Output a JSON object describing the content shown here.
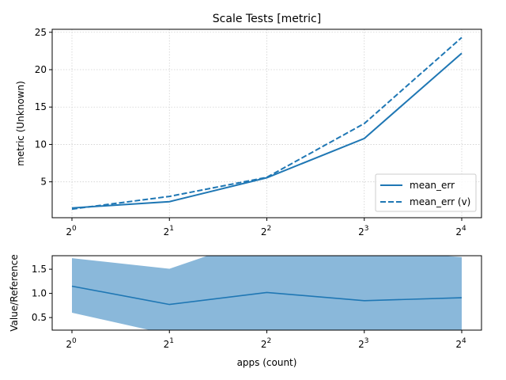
{
  "chart_data": [
    {
      "type": "line",
      "title": "Scale Tests [metric]",
      "xlabel": "",
      "ylabel": "metric (Unknown)",
      "x": [
        1,
        2,
        4,
        8,
        16
      ],
      "xscale": "log2",
      "xticks": [
        {
          "value": 1,
          "base": "2",
          "exp": "0"
        },
        {
          "value": 2,
          "base": "2",
          "exp": "1"
        },
        {
          "value": 4,
          "base": "2",
          "exp": "2"
        },
        {
          "value": 8,
          "base": "2",
          "exp": "3"
        },
        {
          "value": 16,
          "base": "2",
          "exp": "4"
        }
      ],
      "yticks": [
        5,
        10,
        15,
        20,
        25
      ],
      "ylim": [
        0.2,
        25.4
      ],
      "grid": true,
      "legend": "lower-right",
      "series": [
        {
          "name": "mean_err",
          "style": "solid",
          "color": "#1f77b4",
          "values": [
            1.5,
            2.35,
            5.55,
            10.8,
            22.2
          ]
        },
        {
          "name": "mean_err (v)",
          "style": "dashed",
          "color": "#1f77b4",
          "values": [
            1.35,
            3.05,
            5.6,
            12.8,
            24.3
          ]
        }
      ]
    },
    {
      "type": "area",
      "title": "",
      "xlabel": "apps (count)",
      "ylabel": "Value/Reference",
      "x": [
        1,
        2,
        4,
        8,
        16
      ],
      "xscale": "log2",
      "xticks": [
        {
          "value": 1,
          "base": "2",
          "exp": "0"
        },
        {
          "value": 2,
          "base": "2",
          "exp": "1"
        },
        {
          "value": 4,
          "base": "2",
          "exp": "2"
        },
        {
          "value": 8,
          "base": "2",
          "exp": "3"
        },
        {
          "value": 16,
          "base": "2",
          "exp": "4"
        }
      ],
      "yticks": [
        "0.5",
        "1.0",
        "1.5"
      ],
      "ytick_values": [
        0.5,
        1.0,
        1.5
      ],
      "ylim": [
        0.24,
        1.78
      ],
      "grid": false,
      "series": [
        {
          "name": "",
          "color": "#1f77b4",
          "values": [
            1.15,
            0.77,
            1.02,
            0.85,
            0.91
          ]
        }
      ],
      "band": {
        "color": "#8ab8da",
        "lower": [
          0.6,
          0.15,
          0.12,
          0.12,
          0.12
        ],
        "upper": [
          1.73,
          1.51,
          2.2,
          1.9,
          1.75
        ]
      }
    }
  ]
}
